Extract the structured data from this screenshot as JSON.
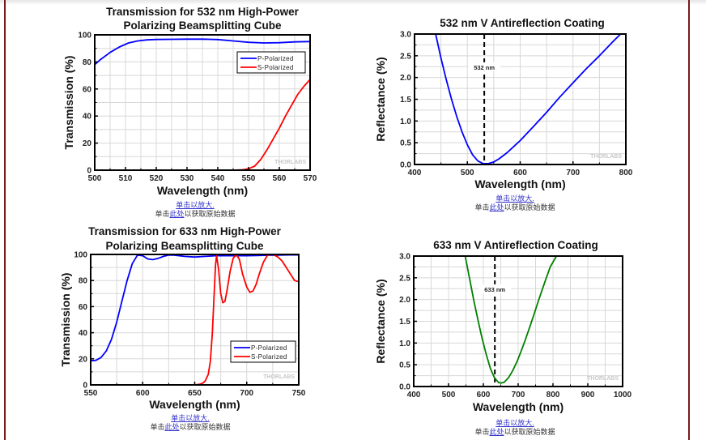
{
  "captions": {
    "enlarge": "单击以放大.",
    "raw_prefix": "单击",
    "raw_link": "此处",
    "raw_suffix": "以获取原始数据"
  },
  "watermark": "THORLABS",
  "chart_data": [
    {
      "type": "line",
      "title": [
        "Transmission for 532 nm High-Power",
        "Polarizing Beamsplitting Cube"
      ],
      "xlabel": "Wavelength (nm)",
      "ylabel": "Transmission (%)",
      "xlim": [
        500,
        570
      ],
      "ylim": [
        0,
        100
      ],
      "xticks": [
        500,
        510,
        520,
        530,
        540,
        550,
        560,
        570
      ],
      "yticks": [
        0,
        20,
        40,
        60,
        80,
        100
      ],
      "grid": true,
      "legend_position": "top-right",
      "series": [
        {
          "name": "P-Polarized",
          "color": "#0000ff",
          "x": [
            500,
            502,
            505,
            508,
            511,
            514,
            517,
            520,
            525,
            530,
            535,
            540,
            545,
            550,
            555,
            560,
            565,
            570
          ],
          "y": [
            78,
            82,
            87,
            91,
            94,
            95.5,
            96.3,
            96.6,
            96.7,
            96.8,
            96.8,
            96.5,
            95.5,
            94.5,
            94,
            94.2,
            94.8,
            95
          ]
        },
        {
          "name": "S-Polarized",
          "color": "#ff0000",
          "x": [
            500,
            545,
            548,
            550,
            552,
            554,
            556,
            558,
            560,
            562,
            564,
            566,
            568,
            570
          ],
          "y": [
            0,
            0,
            0.3,
            1,
            3,
            8,
            15,
            23,
            31,
            40,
            48,
            56,
            62,
            67
          ]
        }
      ]
    },
    {
      "type": "line",
      "title": [
        "532 nm V Antireflection Coating"
      ],
      "xlabel": "Wavelength (nm)",
      "ylabel": "Reflectance (%)",
      "xlim": [
        400,
        800
      ],
      "ylim": [
        0,
        3.0
      ],
      "xticks": [
        400,
        500,
        600,
        700,
        800
      ],
      "yticks": [
        0.0,
        0.5,
        1.0,
        1.5,
        2.0,
        2.5,
        3.0
      ],
      "ytick_labels": [
        "0.0",
        "0.5",
        "1.0",
        "1.5",
        "2.0",
        "2.5",
        "3.0"
      ],
      "grid": true,
      "annotation": {
        "x": 532,
        "label": "532 nm"
      },
      "series": [
        {
          "name": "Reflectance",
          "color": "#0000ff",
          "x": [
            440,
            450,
            460,
            470,
            480,
            490,
            500,
            510,
            520,
            530,
            540,
            550,
            560,
            575,
            600,
            625,
            650,
            675,
            700,
            725,
            750,
            775,
            790
          ],
          "y": [
            3.0,
            2.45,
            1.95,
            1.5,
            1.1,
            0.75,
            0.45,
            0.22,
            0.08,
            0.02,
            0.02,
            0.06,
            0.13,
            0.27,
            0.55,
            0.87,
            1.2,
            1.55,
            1.88,
            2.2,
            2.5,
            2.82,
            3.0
          ]
        }
      ]
    },
    {
      "type": "line",
      "title": [
        "Transmission for 633 nm High-Power",
        "Polarizing Beamsplitting Cube"
      ],
      "xlabel": "Wavelength (nm)",
      "ylabel": "Transmission (%)",
      "xlim": [
        550,
        750
      ],
      "ylim": [
        0,
        100
      ],
      "xticks": [
        550,
        600,
        650,
        700,
        750
      ],
      "yticks": [
        0,
        20,
        40,
        60,
        80,
        100
      ],
      "grid": true,
      "legend_position": "bottom-right",
      "series": [
        {
          "name": "P-Polarized",
          "color": "#0000ff",
          "x": [
            550,
            555,
            560,
            565,
            570,
            575,
            580,
            585,
            590,
            595,
            600,
            605,
            610,
            615,
            620,
            625,
            630,
            640,
            650,
            660,
            670,
            680,
            690,
            700,
            710,
            720,
            730,
            740,
            750
          ],
          "y": [
            18.5,
            18.8,
            21,
            26,
            35,
            48,
            64,
            80,
            93,
            99.5,
            99,
            96.5,
            96,
            97,
            98.5,
            99.5,
            99.5,
            98.5,
            98,
            98.5,
            99,
            99,
            99,
            99,
            99.2,
            99.4,
            99.5,
            99.6,
            99.6
          ]
        },
        {
          "name": "S-Polarized",
          "color": "#ff0000",
          "x": [
            550,
            650,
            655,
            658,
            660,
            663,
            665,
            667,
            669,
            670,
            671,
            673,
            675,
            677,
            679,
            681,
            684,
            687,
            690,
            693,
            696,
            700,
            703,
            706,
            709,
            712,
            716,
            720,
            725,
            730,
            734,
            738,
            742,
            746,
            750
          ],
          "y": [
            0,
            0,
            0.5,
            1.5,
            3,
            8,
            18,
            40,
            75,
            92,
            99,
            88,
            70,
            63,
            64,
            72,
            87,
            97,
            100,
            96,
            85,
            75,
            71,
            72,
            77,
            85,
            94,
            99.5,
            100,
            98,
            95,
            90,
            85,
            80,
            79
          ]
        }
      ]
    },
    {
      "type": "line",
      "title": [
        "633 nm V Antireflection Coating"
      ],
      "xlabel": "Wavelength (nm)",
      "ylabel": "Reflectance (%)",
      "xlim": [
        400,
        1000
      ],
      "ylim": [
        0,
        3.0
      ],
      "xticks": [
        400,
        500,
        600,
        700,
        800,
        900,
        1000
      ],
      "yticks": [
        0.0,
        0.5,
        1.0,
        1.5,
        2.0,
        2.5,
        3.0
      ],
      "ytick_labels": [
        "0.0",
        "0.5",
        "1.0",
        "1.5",
        "2.0",
        "2.5",
        "3.0"
      ],
      "grid": true,
      "annotation": {
        "x": 633,
        "label": "633 nm"
      },
      "series": [
        {
          "name": "Reflectance",
          "color": "#008000",
          "x": [
            548,
            560,
            572,
            584,
            596,
            608,
            620,
            632,
            644,
            652,
            660,
            672,
            684,
            696,
            708,
            720,
            732,
            744,
            756,
            768,
            780,
            792,
            810
          ],
          "y": [
            3.0,
            2.5,
            2.0,
            1.55,
            1.12,
            0.75,
            0.42,
            0.2,
            0.09,
            0.08,
            0.1,
            0.2,
            0.36,
            0.56,
            0.8,
            1.06,
            1.34,
            1.62,
            1.92,
            2.2,
            2.48,
            2.75,
            3.0
          ]
        }
      ]
    }
  ]
}
